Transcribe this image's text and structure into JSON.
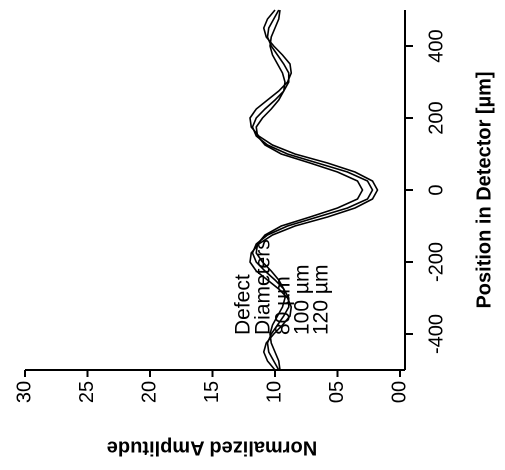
{
  "chart_data": {
    "type": "line",
    "xlabel": "Position in Detector [µm]",
    "ylabel": "Normalized Amplitude",
    "legend_title": [
      "Defect",
      "Diameters"
    ],
    "x": [
      -500,
      -475,
      -450,
      -425,
      -400,
      -375,
      -350,
      -325,
      -300,
      -275,
      -250,
      -225,
      -200,
      -175,
      -150,
      -125,
      -100,
      -75,
      -50,
      -25,
      0,
      25,
      50,
      75,
      100,
      125,
      150,
      175,
      200,
      225,
      250,
      275,
      300,
      325,
      350,
      375,
      400,
      425,
      450,
      475,
      500
    ],
    "series": [
      {
        "name": "80 µm",
        "color": "#000000",
        "values": [
          0.96,
          0.97,
          1.0,
          1.03,
          1.04,
          1.02,
          0.98,
          0.94,
          0.92,
          0.93,
          0.97,
          1.03,
          1.1,
          1.15,
          1.14,
          1.08,
          0.95,
          0.72,
          0.5,
          0.34,
          0.3,
          0.34,
          0.5,
          0.72,
          0.95,
          1.08,
          1.14,
          1.15,
          1.1,
          1.03,
          0.97,
          0.93,
          0.92,
          0.94,
          0.98,
          1.02,
          1.04,
          1.03,
          1.0,
          0.97,
          0.96
        ]
      },
      {
        "name": "100 µm",
        "color": "#000000",
        "values": [
          0.97,
          1.01,
          1.05,
          1.06,
          1.03,
          0.98,
          0.93,
          0.89,
          0.89,
          0.93,
          1.0,
          1.08,
          1.15,
          1.18,
          1.15,
          1.06,
          0.9,
          0.66,
          0.42,
          0.26,
          0.22,
          0.26,
          0.42,
          0.66,
          0.9,
          1.06,
          1.15,
          1.18,
          1.15,
          1.08,
          1.0,
          0.93,
          0.89,
          0.89,
          0.93,
          0.98,
          1.03,
          1.06,
          1.05,
          1.01,
          0.97
        ]
      },
      {
        "name": "120 µm",
        "color": "#000000",
        "values": [
          1.0,
          1.06,
          1.09,
          1.07,
          1.01,
          0.94,
          0.88,
          0.87,
          0.9,
          0.97,
          1.06,
          1.15,
          1.2,
          1.19,
          1.13,
          1.02,
          0.84,
          0.58,
          0.36,
          0.22,
          0.18,
          0.22,
          0.36,
          0.58,
          0.84,
          1.02,
          1.13,
          1.19,
          1.2,
          1.15,
          1.06,
          0.97,
          0.9,
          0.87,
          0.88,
          0.94,
          1.01,
          1.07,
          1.09,
          1.06,
          1.0
        ]
      }
    ],
    "xlim": [
      -500,
      500
    ],
    "xticks": [
      -400,
      -200,
      0,
      200,
      400
    ],
    "ylim": [
      0,
      3
    ],
    "yticks": [
      {
        "value": 0,
        "label": "00"
      },
      {
        "value": 0.5,
        "label": "05"
      },
      {
        "value": 1,
        "label": "10"
      },
      {
        "value": 1.5,
        "label": "15"
      },
      {
        "value": 2,
        "label": "20"
      },
      {
        "value": 2.5,
        "label": "25"
      },
      {
        "value": 3,
        "label": "30"
      }
    ]
  }
}
